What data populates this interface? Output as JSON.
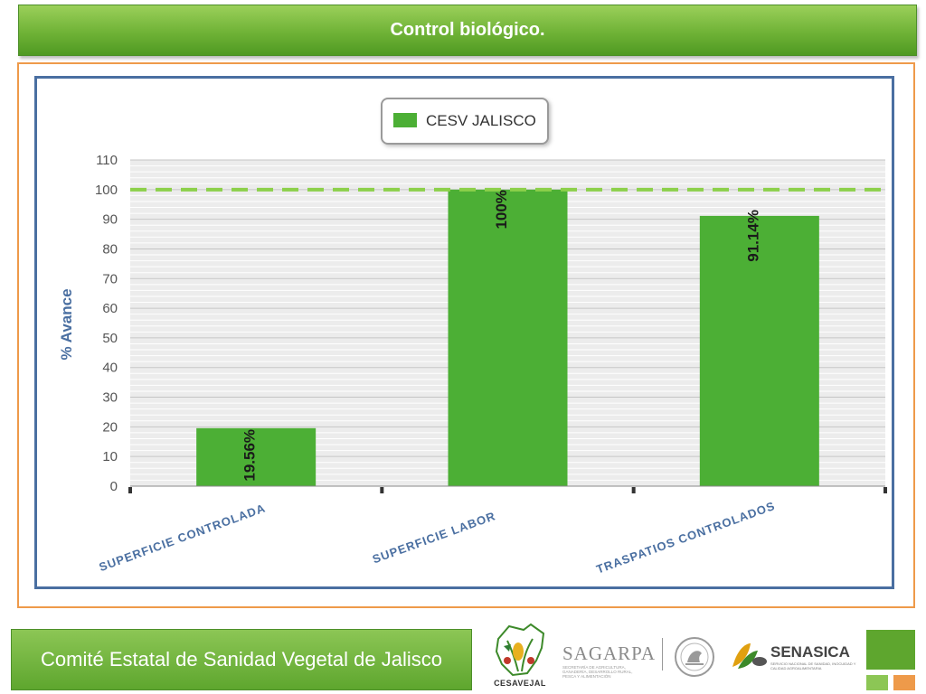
{
  "header": {
    "title": "Control biológico."
  },
  "footer": {
    "org_name": "Comité Estatal de Sanidad Vegetal de Jalisco"
  },
  "logos": {
    "cesavejal": "CESAVEJAL",
    "sagarpa": "SAGARPA",
    "sagarpa_sub": "SECRETARÍA DE AGRICULTURA, GANADERÍA, DESARROLLO RURAL, PESCA Y ALIMENTACIÓN",
    "senasica": "SENASICA",
    "senasica_sub": "SERVICIO NACIONAL DE SANIDAD, INOCUIDAD Y CALIDAD AGROALIMENTARIA"
  },
  "colors": {
    "bar": "#4caf35",
    "target_line": "#8cd04a",
    "axis_label": "#4a6fa1",
    "frame": "#ee9a4a",
    "brand_green": "#5ea62e"
  },
  "chart_data": {
    "type": "bar",
    "categories": [
      "SUPERFICIE CONTROLADA",
      "SUPERFICIE LABOR",
      "TRASPATIOS CONTROLADOS"
    ],
    "series": [
      {
        "name": "CESV JALISCO",
        "values": [
          19.56,
          100,
          91.14
        ]
      }
    ],
    "data_labels": [
      "19.56%",
      "100%",
      "91.14%"
    ],
    "ylabel": "% Avance",
    "ylim": [
      0,
      110
    ],
    "yticks": [
      0,
      10,
      20,
      30,
      40,
      50,
      60,
      70,
      80,
      90,
      100,
      110
    ],
    "reference_line": 100,
    "grid": true,
    "legend_position": "top"
  }
}
